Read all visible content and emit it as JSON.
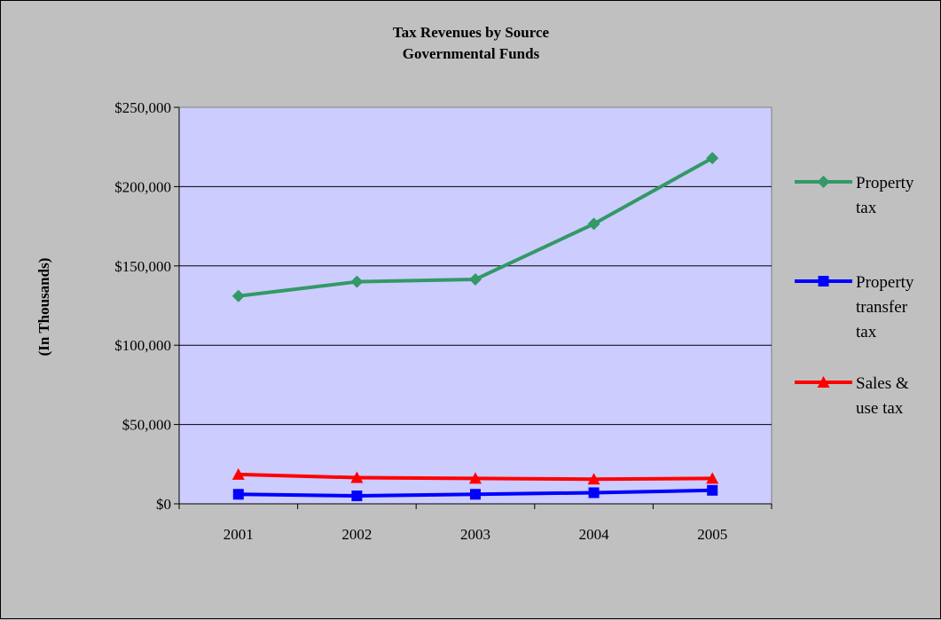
{
  "chart_data": {
    "type": "line",
    "title": "Tax Revenues by Source",
    "subtitle": "Governmental Funds",
    "ylabel": "(In Thousands)",
    "xlabel": "",
    "categories": [
      "2001",
      "2002",
      "2003",
      "2004",
      "2005"
    ],
    "ylim": [
      0,
      250000
    ],
    "y_ticks": [
      0,
      50000,
      100000,
      150000,
      200000,
      250000
    ],
    "y_tick_labels": [
      "$0",
      "$50,000",
      "$100,000",
      "$150,000",
      "$200,000",
      "$250,000"
    ],
    "grid": true,
    "legend_position": "right",
    "plot_background": "#ccccff",
    "series": [
      {
        "name": "Property tax",
        "legend_lines": [
          "Property",
          "tax"
        ],
        "color": "#339966",
        "marker": "diamond",
        "values": [
          131000,
          140000,
          141500,
          176500,
          218000
        ]
      },
      {
        "name": "Property transfer tax",
        "legend_lines": [
          "Property",
          "transfer",
          "tax"
        ],
        "color": "#0000ff",
        "marker": "square",
        "values": [
          6000,
          5000,
          6000,
          7000,
          8500
        ]
      },
      {
        "name": "Sales & use tax",
        "legend_lines": [
          "Sales &",
          "use tax"
        ],
        "color": "#ff0000",
        "marker": "triangle",
        "values": [
          18500,
          16500,
          16000,
          15500,
          16000
        ]
      }
    ]
  }
}
